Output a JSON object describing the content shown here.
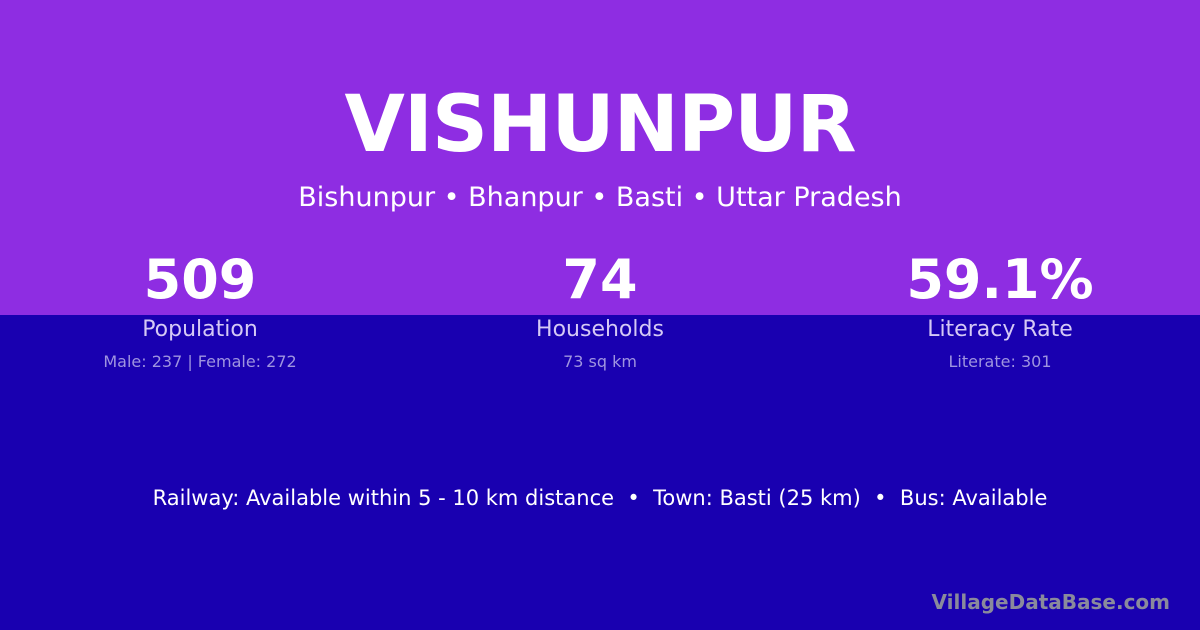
{
  "colors": {
    "top_background": "#8e2de2",
    "bottom_background": "#1900b0"
  },
  "header": {
    "title": "VISHUNPUR",
    "subtitle": "Bishunpur • Bhanpur • Basti • Uttar Pradesh"
  },
  "stats": [
    {
      "value": "509",
      "label": "Population",
      "detail": "Male: 237 | Female: 272"
    },
    {
      "value": "74",
      "label": "Households",
      "detail": "73 sq km"
    },
    {
      "value": "59.1%",
      "label": "Literacy Rate",
      "detail": "Literate: 301"
    }
  ],
  "info": "Railway: Available within 5 - 10 km distance  •  Town: Basti (25 km)  •  Bus: Available",
  "brand": "VillageDataBase.com"
}
